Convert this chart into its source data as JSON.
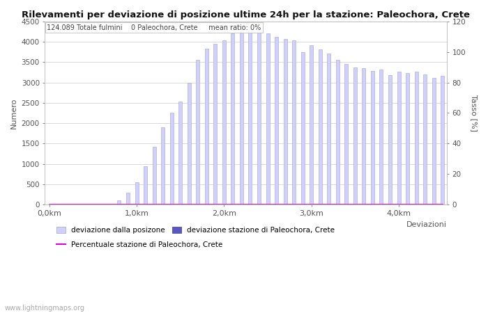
{
  "title": "Rilevamenti per deviazione di posizione ultime 24h per la stazione: Paleochora, Crete",
  "subtitle": "124.089 Totale fulmini    0 Paleochora, Crete     mean ratio: 0%",
  "ylabel_left": "Numero",
  "ylabel_right": "Tasso [%]",
  "xlabel_right": "Deviazioni",
  "ylim_left": [
    0,
    4500
  ],
  "ylim_right": [
    0,
    120
  ],
  "xtick_labels": [
    "0,0km",
    "1,0km",
    "2,0km",
    "3,0km",
    "4,0km"
  ],
  "xtick_positions": [
    0,
    10,
    20,
    30,
    40
  ],
  "ytick_left": [
    0,
    500,
    1000,
    1500,
    2000,
    2500,
    3000,
    3500,
    4000,
    4500
  ],
  "ytick_right": [
    0,
    20,
    40,
    60,
    80,
    100,
    120
  ],
  "bar_values": [
    5,
    5,
    5,
    5,
    5,
    5,
    5,
    5,
    110,
    300,
    560,
    950,
    1420,
    1900,
    2250,
    2530,
    3000,
    3550,
    3820,
    3940,
    4030,
    4200,
    4250,
    4280,
    4290,
    4210,
    4120,
    4070,
    4030,
    3740,
    3920,
    3810,
    3700,
    3560,
    3450,
    3360,
    3350,
    3280,
    3320,
    3180,
    3260,
    3230,
    3270,
    3200,
    3110,
    3160
  ],
  "station_values": [
    0,
    0,
    0,
    0,
    0,
    0,
    0,
    0,
    0,
    0,
    0,
    0,
    0,
    0,
    0,
    0,
    0,
    0,
    0,
    0,
    0,
    0,
    0,
    0,
    0,
    0,
    0,
    0,
    0,
    0,
    0,
    0,
    0,
    0,
    0,
    0,
    0,
    0,
    0,
    0,
    0,
    0,
    0,
    0,
    0,
    0
  ],
  "bar_color": "#d0d0f8",
  "bar_edge_color": "#a0a0d8",
  "station_bar_color": "#5858c0",
  "station_bar_edge_color": "#3838a0",
  "ratio_line_color": "#dd00dd",
  "ratio_values": [
    0,
    0,
    0,
    0,
    0,
    0,
    0,
    0,
    0,
    0,
    0,
    0,
    0,
    0,
    0,
    0,
    0,
    0,
    0,
    0,
    0,
    0,
    0,
    0,
    0,
    0,
    0,
    0,
    0,
    0,
    0,
    0,
    0,
    0,
    0,
    0,
    0,
    0,
    0,
    0,
    0,
    0,
    0,
    0,
    0,
    0
  ],
  "legend_label_bars": "deviazione dalla posizone",
  "legend_label_station": "deviazione stazione di Paleochora, Crete",
  "legend_label_ratio": "Percentuale stazione di Paleochora, Crete",
  "watermark": "www.lightningmaps.org",
  "background_color": "#ffffff",
  "grid_color": "#cccccc",
  "bar_width": 0.4,
  "n_bars": 46
}
